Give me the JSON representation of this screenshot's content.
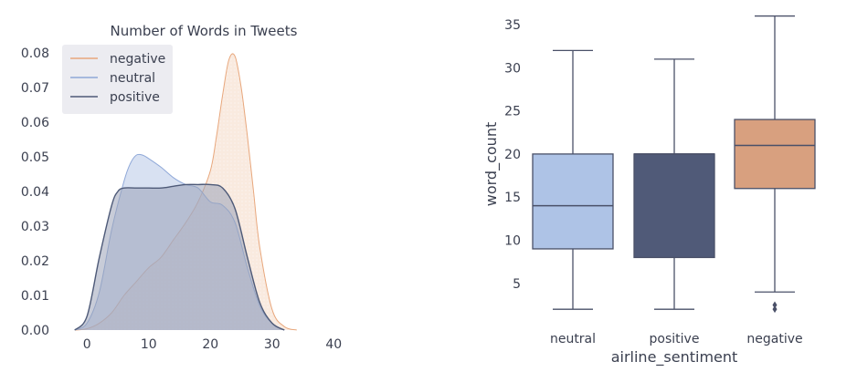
{
  "chart_data": [
    {
      "type": "area",
      "title": "Number of Words in Tweets",
      "xlabel": "",
      "ylabel": "",
      "xlim": [
        -3,
        41
      ],
      "ylim": [
        0,
        0.083
      ],
      "xticks": [
        0,
        10,
        20,
        30,
        40
      ],
      "yticks": [
        "0.00",
        "0.01",
        "0.02",
        "0.03",
        "0.04",
        "0.05",
        "0.06",
        "0.07",
        "0.08"
      ],
      "grid": false,
      "legend_position": "top-left",
      "series": [
        {
          "name": "negative",
          "color": "#e8a77c",
          "x": [
            -2,
            0,
            2,
            4,
            6,
            8,
            10,
            12,
            14,
            16,
            18,
            20,
            21,
            22,
            23,
            24,
            25,
            26,
            27,
            28,
            30,
            32,
            34
          ],
          "y": [
            0,
            0.0004,
            0.002,
            0.005,
            0.01,
            0.014,
            0.018,
            0.021,
            0.026,
            0.031,
            0.037,
            0.046,
            0.056,
            0.068,
            0.078,
            0.079,
            0.07,
            0.056,
            0.04,
            0.024,
            0.006,
            0.001,
            0
          ]
        },
        {
          "name": "neutral",
          "color": "#8fa8d8",
          "x": [
            -2,
            0,
            2,
            4,
            6,
            7,
            8,
            9,
            10,
            12,
            14,
            16,
            18,
            20,
            22,
            24,
            26,
            28,
            30,
            32
          ],
          "y": [
            0,
            0.002,
            0.011,
            0.029,
            0.043,
            0.048,
            0.0505,
            0.0505,
            0.0495,
            0.047,
            0.044,
            0.042,
            0.041,
            0.037,
            0.036,
            0.031,
            0.018,
            0.007,
            0.002,
            0
          ]
        },
        {
          "name": "positive",
          "color": "#4e5a78",
          "x": [
            -2,
            0,
            2,
            4,
            5,
            6,
            8,
            10,
            12,
            14,
            16,
            18,
            20,
            22,
            24,
            26,
            28,
            30,
            32
          ],
          "y": [
            0,
            0.004,
            0.021,
            0.036,
            0.04,
            0.041,
            0.041,
            0.041,
            0.041,
            0.0415,
            0.042,
            0.042,
            0.042,
            0.041,
            0.035,
            0.021,
            0.008,
            0.002,
            0
          ]
        }
      ]
    },
    {
      "type": "box",
      "title": "",
      "xlabel": "airline_sentiment",
      "ylabel": "word_count",
      "ylim": [
        0.5,
        37
      ],
      "yticks": [
        5,
        10,
        15,
        20,
        25,
        30,
        35
      ],
      "grid": false,
      "boxes": [
        {
          "category": "neutral",
          "whisker_low": 2,
          "q1": 9,
          "median": 14,
          "q3": 20,
          "whisker_high": 32,
          "outliers": [],
          "color": "#aec3e6"
        },
        {
          "category": "positive",
          "whisker_low": 2,
          "q1": 8,
          "median": 20,
          "q3": 20,
          "whisker_high": 31,
          "outliers": [],
          "color": "#505a78"
        },
        {
          "category": "negative",
          "whisker_low": 4,
          "q1": 16,
          "median": 21,
          "q3": 24,
          "whisker_high": 36,
          "outliers": [
            2,
            2.5
          ],
          "color": "#d8a07f"
        }
      ]
    }
  ]
}
